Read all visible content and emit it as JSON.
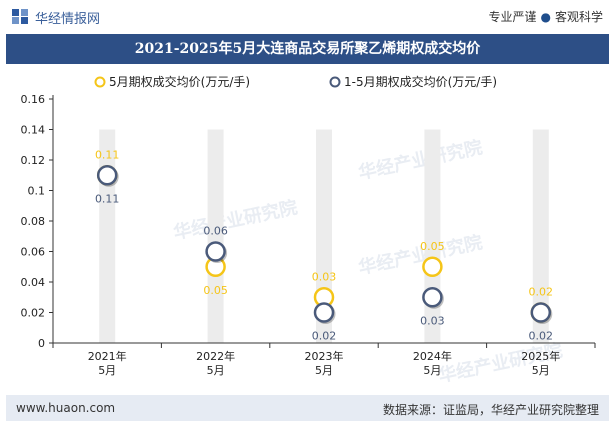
{
  "header": {
    "site_name": "华经情报网",
    "slogan_left": "专业严谨",
    "slogan_right": "客观科学"
  },
  "footer": {
    "website": "www.huaon.com",
    "source": "数据来源：证监局，华经产业研究院整理"
  },
  "watermark": "华经产业研究院",
  "colors": {
    "title_bg": "#2d4f86",
    "may_series": "#f5c518",
    "jan_may_series": "#4a5a7a",
    "bar": "#ececec"
  },
  "chart_data": {
    "type": "scatter",
    "title": "2021-2025年5月大连商品交易所聚乙烯期权成交均价",
    "categories": [
      "2021年\n5月",
      "2022年\n5月",
      "2023年\n5月",
      "2024年\n5月",
      "2025年\n5月"
    ],
    "series": [
      {
        "name": "5月期权成交均价(万元/手)",
        "values": [
          0.11,
          0.05,
          0.03,
          0.05,
          0.02
        ],
        "labels": [
          "0.11",
          "0.05",
          "0.03",
          "0.05",
          "0.02"
        ]
      },
      {
        "name": "1-5月期权成交均价(万元/手)",
        "values": [
          0.11,
          0.06,
          0.02,
          0.03,
          0.02
        ],
        "labels": [
          "0.11",
          "0.06",
          "0.02",
          "0.03",
          "0.02"
        ]
      }
    ],
    "yticks": [
      "0",
      "0.02",
      "0.04",
      "0.06",
      "0.08",
      "0.1",
      "0.12",
      "0.14",
      "0.16"
    ],
    "ylim": [
      0,
      0.16
    ],
    "legend_position": "top-left"
  }
}
